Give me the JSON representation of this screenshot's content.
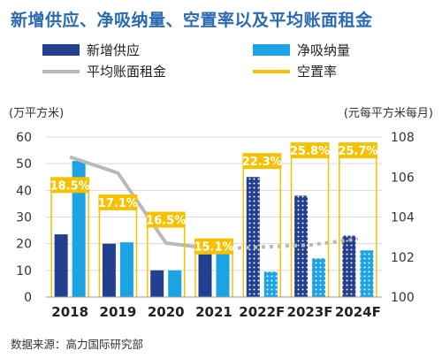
{
  "title": "新增供应、净吸纳量、空置率以及平均账面租金",
  "y_unit_left": "(万平方米)",
  "y_unit_right": "(元每平方米每月)",
  "source": "数据来源：高力国际研究部",
  "colors": {
    "supply": "#233f8f",
    "absorption": "#1ba3e3",
    "rent": "#b9b9b9",
    "vacancy": "#f6c200",
    "title": "#2a6ab3"
  },
  "legend": [
    {
      "label": "新增供应",
      "key": "supply",
      "kind": "box"
    },
    {
      "label": "净吸纳量",
      "key": "absorption",
      "kind": "box"
    },
    {
      "label": "平均账面租金",
      "key": "rent",
      "kind": "line"
    },
    {
      "label": "空置率",
      "key": "vacancy",
      "kind": "line"
    }
  ],
  "chart_data": {
    "type": "bar",
    "categories": [
      "2018",
      "2019",
      "2020",
      "2021",
      "2022F",
      "2023F",
      "2024F"
    ],
    "forecast_from_index": 4,
    "series": [
      {
        "name": "新增供应",
        "type": "bar",
        "axis": "left",
        "values": [
          23.5,
          20,
          10,
          16,
          45,
          38,
          23
        ]
      },
      {
        "name": "净吸纳量",
        "type": "bar",
        "axis": "left",
        "values": [
          51,
          20.5,
          10,
          17,
          9.5,
          14.5,
          17.5
        ]
      },
      {
        "name": "平均账面租金",
        "type": "line",
        "axis": "right",
        "values": [
          107,
          106.2,
          102.7,
          102.4,
          102.5,
          102.6,
          102.9
        ]
      },
      {
        "name": "空置率",
        "type": "label",
        "values": [
          "18.5%",
          "17.1%",
          "16.5%",
          "15.1%",
          "22.3%",
          "25.8%",
          "25.7%"
        ],
        "label_positions": [
          42,
          35.5,
          29,
          19,
          51,
          55,
          55
        ]
      }
    ],
    "y_left": {
      "range": [
        0,
        60
      ],
      "ticks": [
        "0",
        "10",
        "20",
        "30",
        "40",
        "50",
        "60"
      ]
    },
    "y_right": {
      "range": [
        100,
        108
      ],
      "ticks": [
        "100",
        "102",
        "104",
        "106",
        "108"
      ]
    },
    "grid": true,
    "legend_position": "top"
  }
}
